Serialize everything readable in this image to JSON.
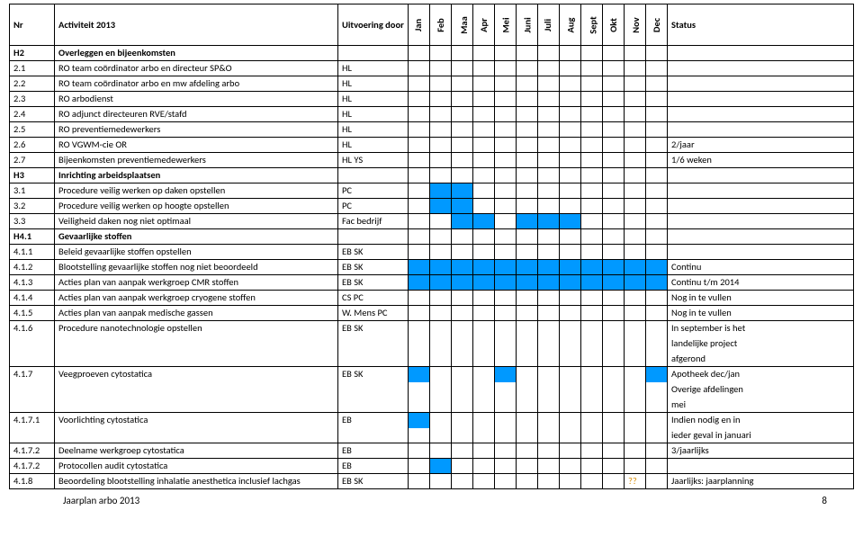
{
  "header": {
    "nr": "Nr",
    "activiteit": "Activiteit 2013",
    "uitvoering": "Uitvoering door",
    "months": [
      "Jan",
      "Feb",
      "Maa",
      "Apr",
      "Mei",
      "Juni",
      "Juli",
      "Aug",
      "Sept",
      "Okt",
      "Nov",
      "Dec"
    ],
    "status": "Status"
  },
  "colors": {
    "highlight": "#0099ff"
  },
  "footer": {
    "title": "Jaarplan arbo 2013",
    "page": "8"
  },
  "rows": [
    {
      "nr": "H2",
      "act": "Overleggen en bijeenkomsten",
      "uit": "",
      "section": true,
      "months": [
        0,
        0,
        0,
        0,
        0,
        0,
        0,
        0,
        0,
        0,
        0,
        0
      ],
      "status": ""
    },
    {
      "nr": "2.1",
      "act": "RO team coördinator arbo en directeur SP&O",
      "uit": "HL",
      "months": [
        0,
        0,
        0,
        0,
        0,
        0,
        0,
        0,
        0,
        0,
        0,
        0
      ],
      "status": ""
    },
    {
      "nr": "2.2",
      "act": "RO team coördinator arbo en mw afdeling arbo",
      "uit": "HL",
      "months": [
        0,
        0,
        0,
        0,
        0,
        0,
        0,
        0,
        0,
        0,
        0,
        0
      ],
      "status": ""
    },
    {
      "nr": "2.3",
      "act": "RO arbodienst",
      "uit": "HL",
      "months": [
        0,
        0,
        0,
        0,
        0,
        0,
        0,
        0,
        0,
        0,
        0,
        0
      ],
      "status": ""
    },
    {
      "nr": "2.4",
      "act": "RO adjunct directeuren RVE/stafd",
      "uit": "HL",
      "months": [
        0,
        0,
        0,
        0,
        0,
        0,
        0,
        0,
        0,
        0,
        0,
        0
      ],
      "status": ""
    },
    {
      "nr": "2.5",
      "act": "RO preventiemedewerkers",
      "uit": "HL",
      "months": [
        0,
        0,
        0,
        0,
        0,
        0,
        0,
        0,
        0,
        0,
        0,
        0
      ],
      "status": ""
    },
    {
      "nr": "2.6",
      "act": "RO VGWM-cie OR",
      "uit": "HL",
      "months": [
        0,
        0,
        0,
        0,
        0,
        0,
        0,
        0,
        0,
        0,
        0,
        0
      ],
      "status": "2/jaar"
    },
    {
      "nr": "2.7",
      "act": "Bijeenkomsten preventiemedewerkers",
      "uit": "HL YS",
      "months": [
        0,
        0,
        0,
        0,
        0,
        0,
        0,
        0,
        0,
        0,
        0,
        0
      ],
      "status": "1/6 weken"
    },
    {
      "nr": "H3",
      "act": "Inrichting arbeidsplaatsen",
      "uit": "",
      "section": true,
      "months": [
        0,
        0,
        0,
        0,
        0,
        0,
        0,
        0,
        0,
        0,
        0,
        0
      ],
      "status": ""
    },
    {
      "nr": "3.1",
      "act": "Procedure veilig werken op daken opstellen",
      "uit": "PC",
      "months": [
        0,
        1,
        1,
        0,
        0,
        0,
        0,
        0,
        0,
        0,
        0,
        0
      ],
      "status": ""
    },
    {
      "nr": "3.2",
      "act": "Procedure veilig werken op hoogte opstellen",
      "uit": "PC",
      "months": [
        0,
        1,
        1,
        0,
        0,
        0,
        0,
        0,
        0,
        0,
        0,
        0
      ],
      "status": ""
    },
    {
      "nr": "3.3",
      "act": "Veiligheid daken nog niet optimaal",
      "uit": "Fac bedrijf",
      "months": [
        0,
        0,
        1,
        1,
        0,
        1,
        1,
        1,
        0,
        0,
        0,
        0
      ],
      "status": ""
    },
    {
      "nr": "H4.1",
      "act": "Gevaarlijke stoffen",
      "uit": "",
      "section": true,
      "months": [
        0,
        0,
        0,
        0,
        0,
        0,
        0,
        0,
        0,
        0,
        0,
        0
      ],
      "status": ""
    },
    {
      "nr": "4.1.1",
      "act": "Beleid gevaarlijke stoffen opstellen",
      "uit": "EB SK",
      "months": [
        0,
        0,
        0,
        0,
        0,
        0,
        0,
        0,
        0,
        0,
        0,
        0
      ],
      "status": ""
    },
    {
      "nr": "4.1.2",
      "act": "Blootstelling gevaarlijke stoffen nog niet beoordeeld",
      "uit": "EB SK",
      "months": [
        1,
        1,
        1,
        1,
        1,
        1,
        1,
        1,
        1,
        1,
        1,
        1
      ],
      "status": "Continu"
    },
    {
      "nr": "4.1.3",
      "act": "Acties plan van aanpak werkgroep CMR stoffen",
      "uit": "EB SK",
      "months": [
        1,
        1,
        1,
        1,
        1,
        1,
        1,
        1,
        1,
        1,
        1,
        1
      ],
      "status": "Continu t/m 2014"
    },
    {
      "nr": "4.1.4",
      "act": "Acties plan van aanpak werkgroep cryogene stoffen",
      "uit": "CS PC",
      "months": [
        0,
        0,
        0,
        0,
        0,
        0,
        0,
        0,
        0,
        0,
        0,
        0
      ],
      "status": "Nog in te vullen"
    },
    {
      "nr": "4.1.5",
      "act": "Acties plan van aanpak medische gassen",
      "uit": "W. Mens PC",
      "months": [
        0,
        0,
        0,
        0,
        0,
        0,
        0,
        0,
        0,
        0,
        0,
        0
      ],
      "status": "Nog in te vullen"
    },
    {
      "nr": "4.1.6",
      "act": "Procedure nanotechnologie opstellen",
      "uit": "EB SK",
      "months": [
        0,
        0,
        0,
        0,
        0,
        0,
        0,
        0,
        0,
        0,
        0,
        0
      ],
      "status": "In september is het",
      "cont": [
        "landelijke project",
        "afgerond"
      ]
    },
    {
      "nr": "4.1.7",
      "act": "Veegproeven cytostatica",
      "uit": "EB SK",
      "months": [
        1,
        0,
        0,
        0,
        1,
        0,
        0,
        0,
        0,
        0,
        0,
        1
      ],
      "status": "Apotheek dec/jan",
      "cont": [
        "Overige afdelingen",
        "mei"
      ]
    },
    {
      "nr": "4.1.7.1",
      "act": "Voorlichting cytostatica",
      "uit": "EB",
      "months": [
        1,
        0,
        0,
        0,
        0,
        0,
        0,
        0,
        0,
        0,
        0,
        0
      ],
      "status": "Indien nodig en in",
      "cont": [
        "ieder geval in januari"
      ]
    },
    {
      "nr": "4.1.7.2",
      "act": "Deelname werkgroep cytostatica",
      "uit": "EB",
      "months": [
        0,
        0,
        0,
        0,
        0,
        0,
        0,
        0,
        0,
        0,
        0,
        0
      ],
      "status": "3/jaarlijks"
    },
    {
      "nr": "4.1.7.2",
      "act": "Protocollen audit cytostatica",
      "uit": "EB",
      "months": [
        0,
        1,
        0,
        0,
        0,
        0,
        0,
        0,
        0,
        0,
        0,
        0
      ],
      "status": ""
    },
    {
      "nr": "4.1.8",
      "act": "Beoordeling blootstelling inhalatie anesthetica inclusief lachgas",
      "uit": "EB SK",
      "months": [
        0,
        0,
        0,
        0,
        0,
        0,
        0,
        0,
        0,
        0,
        0,
        0
      ],
      "status": "Jaarlijks: jaarplanning",
      "m11": "??"
    }
  ]
}
